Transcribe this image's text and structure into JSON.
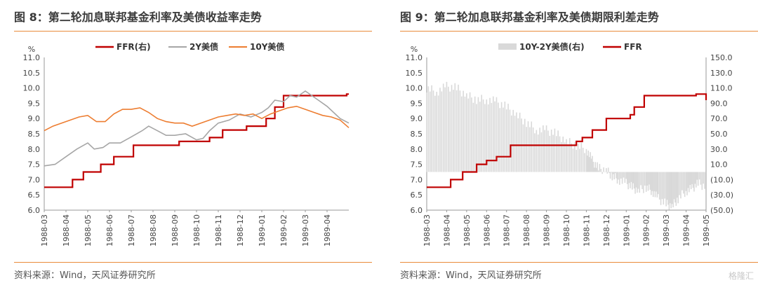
{
  "panels": [
    {
      "fig_title": "图 8：第二轮加息联邦基金利率及美债收益率走势",
      "source": "资料来源：Wind，天风证券研究所"
    },
    {
      "fig_title": "图 9：第二轮加息联邦基金利率及美债期限利差走势",
      "source": "资料来源：Wind，天风证券研究所"
    }
  ],
  "watermark": "格隆汇",
  "chart_data": [
    {
      "type": "line",
      "title": "",
      "ylabel": "%",
      "ylim": [
        6.0,
        11.0
      ],
      "yticks": [
        "11.0",
        "10.5",
        "10.0",
        "9.5",
        "9.0",
        "8.5",
        "8.0",
        "7.5",
        "7.0",
        "6.5",
        "6.0"
      ],
      "xlim": [
        0,
        14.0
      ],
      "x_tick_labels": [
        "1988-03",
        "1988-04",
        "1988-05",
        "1988-06",
        "1988-07",
        "1988-08",
        "1988-09",
        "1988-10",
        "1988-11",
        "1988-12",
        "1989-01",
        "1989-02",
        "1989-03",
        "1989-04"
      ],
      "x_tick_positions": [
        0,
        1,
        2,
        3,
        4,
        5,
        6,
        7,
        8,
        9,
        10,
        11,
        12,
        13
      ],
      "legend_position": "top",
      "series": [
        {
          "name": "FFR(右)",
          "color": "#c00000",
          "style": "step",
          "points": [
            [
              0,
              6.75
            ],
            [
              1.3,
              6.75
            ],
            [
              1.3,
              7.0
            ],
            [
              1.8,
              7.0
            ],
            [
              1.8,
              7.25
            ],
            [
              2.6,
              7.25
            ],
            [
              2.6,
              7.5
            ],
            [
              3.2,
              7.5
            ],
            [
              3.2,
              7.75
            ],
            [
              4.1,
              7.75
            ],
            [
              4.1,
              8.125
            ],
            [
              6.2,
              8.125
            ],
            [
              6.2,
              8.25
            ],
            [
              7.6,
              8.25
            ],
            [
              7.6,
              8.375
            ],
            [
              8.2,
              8.375
            ],
            [
              8.2,
              8.625
            ],
            [
              9.3,
              8.625
            ],
            [
              9.3,
              8.75
            ],
            [
              10.2,
              8.75
            ],
            [
              10.2,
              9.0
            ],
            [
              10.6,
              9.0
            ],
            [
              10.6,
              9.375
            ],
            [
              11.0,
              9.375
            ],
            [
              11.0,
              9.75
            ],
            [
              13.9,
              9.75
            ],
            [
              13.9,
              9.8
            ],
            [
              14.0,
              9.8
            ]
          ]
        },
        {
          "name": "2Y美债",
          "color": "#a6a6a6",
          "style": "line",
          "points": [
            [
              0,
              7.45
            ],
            [
              0.5,
              7.5
            ],
            [
              1.0,
              7.75
            ],
            [
              1.5,
              8.0
            ],
            [
              2.0,
              8.2
            ],
            [
              2.3,
              8.0
            ],
            [
              2.7,
              8.05
            ],
            [
              3.0,
              8.2
            ],
            [
              3.5,
              8.2
            ],
            [
              4.0,
              8.4
            ],
            [
              4.5,
              8.6
            ],
            [
              4.8,
              8.75
            ],
            [
              5.2,
              8.6
            ],
            [
              5.6,
              8.45
            ],
            [
              6.0,
              8.45
            ],
            [
              6.5,
              8.5
            ],
            [
              7.0,
              8.3
            ],
            [
              7.3,
              8.35
            ],
            [
              7.6,
              8.6
            ],
            [
              8.0,
              8.85
            ],
            [
              8.5,
              8.95
            ],
            [
              9.0,
              9.15
            ],
            [
              9.5,
              9.05
            ],
            [
              10.0,
              9.2
            ],
            [
              10.3,
              9.35
            ],
            [
              10.6,
              9.6
            ],
            [
              11.0,
              9.55
            ],
            [
              11.3,
              9.75
            ],
            [
              11.6,
              9.7
            ],
            [
              12.0,
              9.9
            ],
            [
              12.3,
              9.75
            ],
            [
              12.6,
              9.6
            ],
            [
              13.0,
              9.4
            ],
            [
              13.3,
              9.2
            ],
            [
              13.6,
              9.0
            ],
            [
              14.0,
              8.85
            ]
          ]
        },
        {
          "name": "10Y美债",
          "color": "#ed7d31",
          "style": "line",
          "points": [
            [
              0,
              8.6
            ],
            [
              0.4,
              8.75
            ],
            [
              0.8,
              8.85
            ],
            [
              1.2,
              8.95
            ],
            [
              1.6,
              9.05
            ],
            [
              2.0,
              9.1
            ],
            [
              2.4,
              8.9
            ],
            [
              2.8,
              8.9
            ],
            [
              3.2,
              9.15
            ],
            [
              3.6,
              9.3
            ],
            [
              4.0,
              9.3
            ],
            [
              4.4,
              9.35
            ],
            [
              4.8,
              9.2
            ],
            [
              5.2,
              9.0
            ],
            [
              5.6,
              8.9
            ],
            [
              6.0,
              8.85
            ],
            [
              6.4,
              8.85
            ],
            [
              6.8,
              8.75
            ],
            [
              7.2,
              8.85
            ],
            [
              7.6,
              8.95
            ],
            [
              8.0,
              9.05
            ],
            [
              8.4,
              9.1
            ],
            [
              8.8,
              9.15
            ],
            [
              9.2,
              9.1
            ],
            [
              9.6,
              9.15
            ],
            [
              10.0,
              9.0
            ],
            [
              10.4,
              9.15
            ],
            [
              10.8,
              9.25
            ],
            [
              11.2,
              9.35
            ],
            [
              11.6,
              9.4
            ],
            [
              12.0,
              9.3
            ],
            [
              12.4,
              9.2
            ],
            [
              12.8,
              9.1
            ],
            [
              13.2,
              9.05
            ],
            [
              13.6,
              8.95
            ],
            [
              14.0,
              8.7
            ]
          ]
        }
      ]
    },
    {
      "type": "line",
      "title": "",
      "ylabel": "%",
      "ylim": [
        6.0,
        11.0
      ],
      "yticks": [
        "11.0",
        "10.5",
        "10.0",
        "9.5",
        "9.0",
        "8.5",
        "8.0",
        "7.5",
        "7.0",
        "6.5",
        "6.0"
      ],
      "y2lim": [
        -50.0,
        150.0
      ],
      "y2ticks": [
        {
          "label": "150.0",
          "color": "#333333"
        },
        {
          "label": "130.0",
          "color": "#333333"
        },
        {
          "label": "110.0",
          "color": "#333333"
        },
        {
          "label": "90.0",
          "color": "#333333"
        },
        {
          "label": "70.0",
          "color": "#333333"
        },
        {
          "label": "50.0",
          "color": "#333333"
        },
        {
          "label": "30.0",
          "color": "#333333"
        },
        {
          "label": "10.0",
          "color": "#333333"
        },
        {
          "label": "(10.0)",
          "color": "#c00000"
        },
        {
          "label": "(30.0)",
          "color": "#c00000"
        },
        {
          "label": "(50.0)",
          "color": "#c00000"
        }
      ],
      "xlim": [
        0,
        14.0
      ],
      "x_tick_labels": [
        "1988-03",
        "1988-04",
        "1988-05",
        "1988-06",
        "1988-07",
        "1988-08",
        "1988-09",
        "1988-10",
        "1988-11",
        "1988-12",
        "1989-01",
        "1989-02",
        "1989-03",
        "1989-04",
        "1989-05"
      ],
      "x_tick_positions": [
        0,
        1,
        2,
        3,
        4,
        5,
        6,
        7,
        8,
        9,
        10,
        11,
        12,
        13,
        14
      ],
      "legend_position": "top",
      "series": [
        {
          "name": "10Y-2Y美债(右)",
          "color": "#d9d9d9",
          "style": "bar",
          "axis": "right",
          "points": [
            [
              0,
              110
            ],
            [
              0.5,
              105
            ],
            [
              1.0,
              112
            ],
            [
              1.5,
              110
            ],
            [
              2.0,
              100
            ],
            [
              2.5,
              95
            ],
            [
              3.0,
              95
            ],
            [
              3.5,
              92
            ],
            [
              4.0,
              85
            ],
            [
              4.5,
              75
            ],
            [
              5.0,
              65
            ],
            [
              5.5,
              55
            ],
            [
              6.0,
              55
            ],
            [
              6.5,
              50
            ],
            [
              7.0,
              40
            ],
            [
              7.5,
              35
            ],
            [
              8.0,
              30
            ],
            [
              8.3,
              15
            ],
            [
              8.6,
              5
            ],
            [
              9.0,
              2
            ],
            [
              9.3,
              -5
            ],
            [
              9.6,
              -10
            ],
            [
              10.0,
              -15
            ],
            [
              10.3,
              -20
            ],
            [
              10.6,
              -25
            ],
            [
              11.0,
              -20
            ],
            [
              11.3,
              -25
            ],
            [
              11.6,
              -35
            ],
            [
              12.0,
              -42
            ],
            [
              12.3,
              -45
            ],
            [
              12.6,
              -35
            ],
            [
              13.0,
              -25
            ],
            [
              13.3,
              -22
            ],
            [
              13.6,
              -15
            ],
            [
              14.0,
              -20
            ]
          ]
        },
        {
          "name": "FFR",
          "color": "#c00000",
          "style": "step",
          "axis": "left",
          "points": [
            [
              0,
              6.75
            ],
            [
              1.2,
              6.75
            ],
            [
              1.2,
              7.0
            ],
            [
              1.8,
              7.0
            ],
            [
              1.8,
              7.25
            ],
            [
              2.5,
              7.25
            ],
            [
              2.5,
              7.5
            ],
            [
              3.0,
              7.5
            ],
            [
              3.0,
              7.625
            ],
            [
              3.5,
              7.625
            ],
            [
              3.5,
              7.75
            ],
            [
              4.2,
              7.75
            ],
            [
              4.2,
              8.125
            ],
            [
              7.5,
              8.125
            ],
            [
              7.5,
              8.25
            ],
            [
              7.8,
              8.25
            ],
            [
              7.8,
              8.375
            ],
            [
              8.3,
              8.375
            ],
            [
              8.3,
              8.625
            ],
            [
              9.0,
              8.625
            ],
            [
              9.0,
              9.0
            ],
            [
              10.2,
              9.0
            ],
            [
              10.2,
              9.125
            ],
            [
              10.4,
              9.125
            ],
            [
              10.4,
              9.375
            ],
            [
              10.9,
              9.375
            ],
            [
              10.9,
              9.75
            ],
            [
              13.5,
              9.75
            ],
            [
              13.5,
              9.8
            ],
            [
              14.0,
              9.8
            ],
            [
              14.0,
              9.6
            ]
          ]
        }
      ]
    }
  ]
}
